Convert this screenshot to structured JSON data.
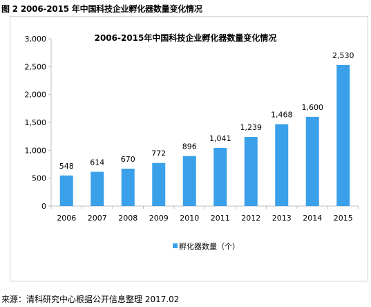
{
  "figure": {
    "caption": "图 2 2006-2015 年中国科技企业孵化器数量变化情况",
    "source": "来源：清科研究中心根据公开信息整理   2017.02"
  },
  "colors": {
    "bar": "#3aa0ea",
    "axis": "#bfbfbf",
    "frame": "#cfcfcf"
  },
  "chart_data": {
    "type": "bar",
    "title": "2006-2015年中国科技企业孵化器数量变化情况",
    "xlabel": "",
    "ylabel": "",
    "categories": [
      "2006",
      "2007",
      "2008",
      "2009",
      "2010",
      "2011",
      "2012",
      "2013",
      "2014",
      "2015"
    ],
    "series": [
      {
        "name": "孵化器数量（个）",
        "values": [
          548,
          614,
          670,
          772,
          896,
          1041,
          1239,
          1468,
          1600,
          2530
        ],
        "labels": [
          "548",
          "614",
          "670",
          "772",
          "896",
          "1,041",
          "1,239",
          "1,468",
          "1,600",
          "2,530"
        ]
      }
    ],
    "ylim": [
      0,
      3000
    ],
    "yticks": [
      0,
      500,
      1000,
      1500,
      2000,
      2500,
      3000
    ],
    "ytick_labels": [
      "0",
      "500",
      "1,000",
      "1,500",
      "2,000",
      "2,500",
      "3,000"
    ],
    "grid": false,
    "legend_position": "bottom"
  }
}
